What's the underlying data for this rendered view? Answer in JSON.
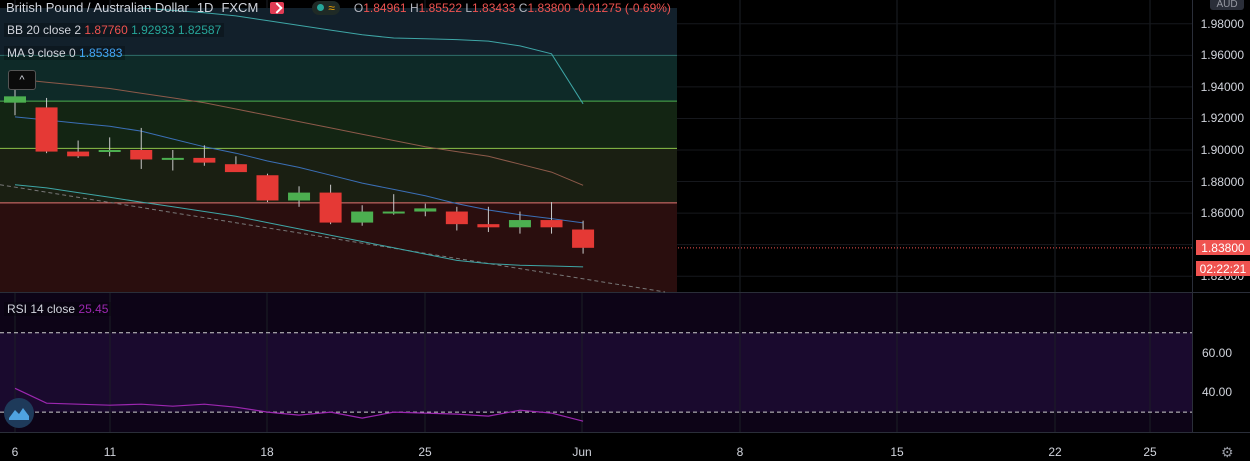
{
  "header": {
    "title": "British Pound / Australian Dollar",
    "interval": "1D",
    "exchange": "FXCM",
    "ohlc": {
      "o_key": "O",
      "o": "1.84961",
      "h_key": "H",
      "h": "1.85522",
      "l_key": "L",
      "l": "1.83433",
      "c_key": "C",
      "c": "1.83800",
      "change": "-0.01275 (-0.69%)"
    }
  },
  "indicators": {
    "bb": {
      "label": "BB 20 close 2",
      "v1": "1.87760",
      "v2": "1.92933",
      "v3": "1.82587"
    },
    "ma": {
      "label": "MA 9 close 0",
      "v1": "1.85383"
    },
    "rsi": {
      "label": "RSI 14 close",
      "v1": "25.45"
    }
  },
  "colors": {
    "up": "#4caf50",
    "down": "#e53935",
    "bb_line": "#3ea6a6",
    "ma_line": "#2962ff",
    "rsi_line": "#9c27b0"
  },
  "price_axis": {
    "currency": "AUD",
    "ticks": [
      "1.98000",
      "1.96000",
      "1.94000",
      "1.92000",
      "1.90000",
      "1.88000",
      "1.86000",
      "1.84000",
      "1.82000"
    ],
    "current_price": "1.83800",
    "countdown": "02:22:21"
  },
  "rsi_axis": {
    "ticks": [
      "60.00",
      "40.00"
    ]
  },
  "time_axis": {
    "labels": [
      "6",
      "11",
      "18",
      "25",
      "Jun",
      "8",
      "15",
      "22",
      "25"
    ]
  },
  "chart_data": {
    "type": "candlestick",
    "dates": [
      "May 6",
      "May 7",
      "May 8",
      "May 11",
      "May 12",
      "May 13",
      "May 14",
      "May 15",
      "May 18",
      "May 19",
      "May 20",
      "May 21",
      "May 22",
      "May 25",
      "May 26",
      "May 27",
      "May 28",
      "May 29",
      "Jun 1"
    ],
    "open": [
      1.93,
      1.927,
      1.899,
      1.899,
      1.9,
      1.894,
      1.895,
      1.891,
      1.884,
      1.868,
      1.873,
      1.854,
      1.861,
      1.861,
      1.861,
      1.853,
      1.851,
      1.8556,
      1.8496
    ],
    "high": [
      1.938,
      1.933,
      1.906,
      1.908,
      1.914,
      1.9,
      1.903,
      1.896,
      1.885,
      1.877,
      1.878,
      1.865,
      1.872,
      1.866,
      1.864,
      1.864,
      1.861,
      1.867,
      1.8552
    ],
    "low": [
      1.922,
      1.898,
      1.895,
      1.896,
      1.888,
      1.887,
      1.89,
      1.887,
      1.867,
      1.864,
      1.853,
      1.852,
      1.859,
      1.858,
      1.849,
      1.848,
      1.847,
      1.847,
      1.8343
    ],
    "close": [
      1.934,
      1.899,
      1.896,
      1.9,
      1.894,
      1.895,
      1.892,
      1.886,
      1.868,
      1.873,
      1.854,
      1.861,
      1.861,
      1.863,
      1.853,
      1.851,
      1.8556,
      1.851,
      1.838
    ],
    "bb_upper": [
      null,
      null,
      null,
      null,
      1.99,
      1.9885,
      1.987,
      1.985,
      1.982,
      1.979,
      1.976,
      1.973,
      1.971,
      1.9705,
      1.97,
      1.969,
      1.966,
      1.961,
      1.9293
    ],
    "bb_basis": [
      1.945,
      1.943,
      1.941,
      1.939,
      1.936,
      1.933,
      1.93,
      1.926,
      1.922,
      1.918,
      1.914,
      1.91,
      1.906,
      1.902,
      1.899,
      1.896,
      1.891,
      1.886,
      1.8776
    ],
    "bb_lower": [
      1.878,
      1.876,
      1.873,
      1.87,
      1.867,
      1.864,
      1.861,
      1.858,
      1.854,
      1.85,
      1.846,
      1.842,
      1.838,
      1.834,
      1.83,
      1.828,
      1.827,
      1.8265,
      1.8259
    ],
    "ma9": [
      1.921,
      1.919,
      1.917,
      1.915,
      1.912,
      1.907,
      1.902,
      1.898,
      1.893,
      1.889,
      1.884,
      1.879,
      1.875,
      1.871,
      1.866,
      1.862,
      1.859,
      1.8565,
      1.8538
    ],
    "rsi": [
      42.0,
      34.5,
      34.0,
      33.5,
      34.0,
      33.0,
      34.0,
      32.5,
      30.0,
      28.5,
      30.0,
      27.0,
      30.0,
      29.5,
      29.0,
      28.0,
      31.0,
      29.5,
      25.45
    ],
    "ylim": [
      1.81,
      1.99
    ],
    "rsi_ylim": [
      20,
      90
    ]
  }
}
